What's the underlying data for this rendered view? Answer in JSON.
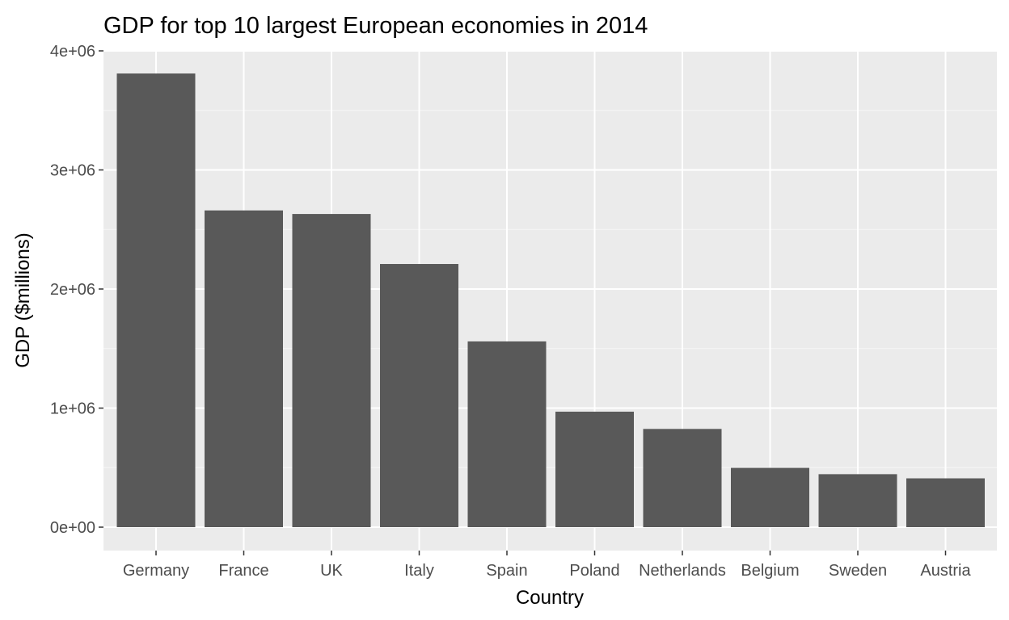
{
  "chart_data": {
    "type": "bar",
    "title": "GDP for top 10 largest European economies in 2014",
    "xlabel": "Country",
    "ylabel": "GDP ($millions)",
    "categories": [
      "Germany",
      "France",
      "UK",
      "Italy",
      "Spain",
      "Poland",
      "Netherlands",
      "Belgium",
      "Sweden",
      "Austria"
    ],
    "values": [
      3810000,
      2660000,
      2630000,
      2210000,
      1560000,
      970000,
      825000,
      498000,
      445000,
      410000
    ],
    "ylim": [
      0,
      4000000
    ],
    "yticks": [
      0,
      1000000,
      2000000,
      3000000,
      4000000
    ],
    "ytick_labels": [
      "0e+00",
      "1e+06",
      "2e+06",
      "3e+06",
      "4e+06"
    ],
    "grid": true,
    "legend": "none",
    "colors": {
      "bar": "#595959",
      "panel_background": "#ebebeb",
      "gridline": "#ffffff",
      "tick": "#333333"
    }
  }
}
